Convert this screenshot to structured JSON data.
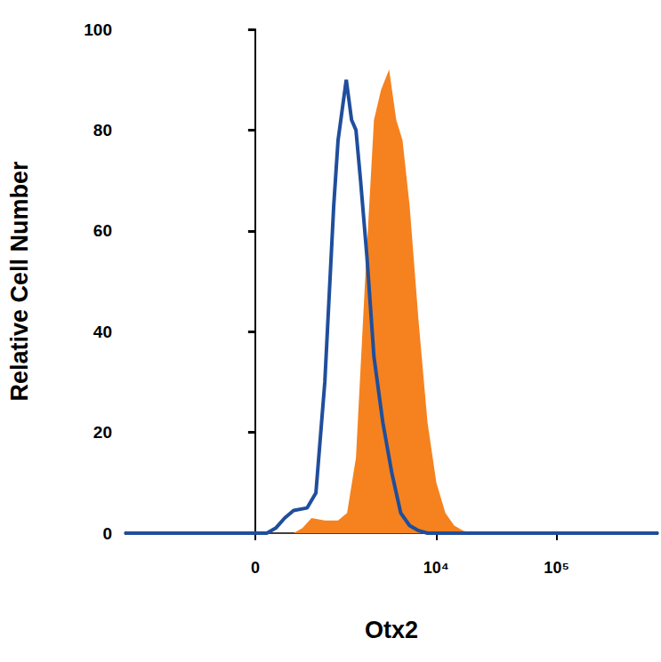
{
  "chart_data": {
    "type": "line",
    "x_label": "Otx2",
    "y_label": "Relative Cell Number",
    "xlim": [
      -3800,
      700000
    ],
    "xticks": [
      0,
      {
        "value": 10000,
        "label": "10⁴"
      },
      {
        "value": 100000,
        "label": "10⁵"
      }
    ],
    "ylim": [
      0,
      100
    ],
    "yticks": [
      0,
      20,
      40,
      60,
      80,
      100
    ],
    "grid": false,
    "series": [
      {
        "type": "area",
        "color": "#f5821f",
        "x": [
          -3800,
          -1315,
          141,
          504,
          648,
          816,
          1107,
          1469,
          1768,
          2113,
          2530,
          3013,
          3461,
          4045,
          4644,
          5238,
          6007,
          7139,
          8466,
          10035,
          11926,
          14130,
          16740,
          19860,
          33200,
          154000,
          700000
        ],
        "values": [
          0,
          0,
          0,
          0,
          1,
          3,
          2.5,
          2.5,
          4,
          15,
          50,
          82,
          88,
          92,
          82,
          78,
          65,
          42,
          22,
          10,
          4,
          1.5,
          0.5,
          0,
          0,
          0,
          0
        ]
      },
      {
        "type": "line",
        "color": "#1f4e9c",
        "x": [
          -3800,
          -1315,
          141,
          253,
          373,
          504,
          730,
          905,
          1107,
          1341,
          1469,
          1738,
          1935,
          2113,
          2315,
          2623,
          3013,
          3579,
          4258,
          5064,
          6007,
          7139,
          8466,
          11926,
          33200,
          154000,
          362000,
          700000
        ],
        "values": [
          0,
          0,
          0,
          1,
          3,
          4.5,
          5,
          8,
          30,
          65,
          78,
          90,
          82,
          80,
          70,
          55,
          35,
          22,
          12,
          4,
          1.5,
          0.5,
          0,
          0,
          0,
          0,
          0,
          0
        ]
      }
    ]
  }
}
